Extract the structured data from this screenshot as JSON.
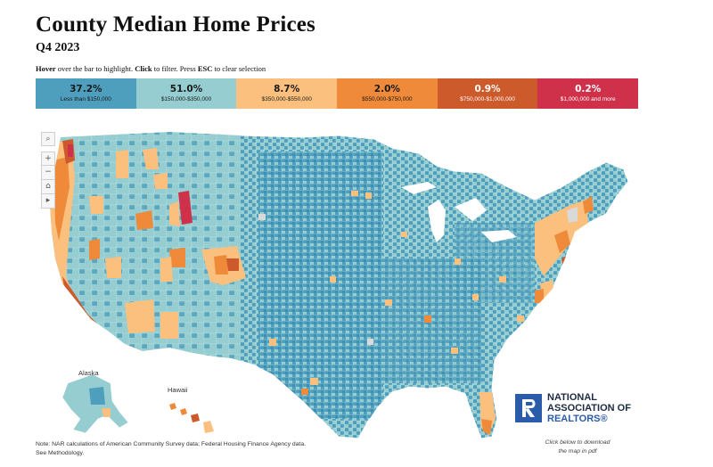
{
  "header": {
    "title": "County Median Home Prices",
    "subtitle": "Q4 2023",
    "instr_hover": "Hover",
    "instr_text1": " over the bar to highlight. ",
    "instr_click": "Click",
    "instr_text2": " to filter. Press ",
    "instr_esc": "ESC",
    "instr_text3": " to clear selection"
  },
  "legend": [
    {
      "pct": "37.2%",
      "range": "Less than $150,000",
      "color": "#4e9fbd"
    },
    {
      "pct": "51.0%",
      "range": "$150,000-$350,000",
      "color": "#95cdd0"
    },
    {
      "pct": "8.7%",
      "range": "$350,000-$550,000",
      "color": "#fbc07d"
    },
    {
      "pct": "2.0%",
      "range": "$550,000-$750,000",
      "color": "#ef8a3b"
    },
    {
      "pct": "0.9%",
      "range": "$750,000-$1,000,000",
      "color": "#cc5a2b"
    },
    {
      "pct": "0.2%",
      "range": "$1,000,000 and more",
      "color": "#d0314a"
    }
  ],
  "map_tools": {
    "search": "⌕",
    "zoom_in": "+",
    "zoom_out": "−",
    "home": "⌂",
    "expand": "▸"
  },
  "map_labels": {
    "alaska": "Alaska",
    "hawaii": "Hawaii"
  },
  "note": {
    "line1": "Note: NAR calculations of American Community Survey data; Federal Housing Finance Agency data.",
    "line2": "See Methodology."
  },
  "logo": {
    "line1": "NATIONAL",
    "line2": "ASSOCIATION OF",
    "line3": "REALTORS",
    "reg": "®"
  },
  "download": {
    "line1": "Click below to download",
    "line2": "the map in pdf"
  }
}
